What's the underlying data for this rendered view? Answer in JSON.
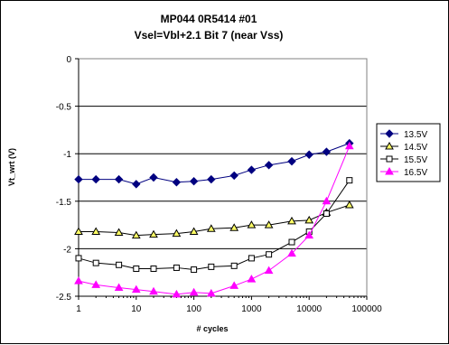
{
  "chart_data": {
    "type": "line",
    "title": "MP044 0R5414 #01",
    "subtitle": "Vsel=Vbl+2.1   Bit 7 (near Vss)",
    "xlabel": "# cycles",
    "ylabel": "Vt_wrt (V)",
    "x_scale": "log",
    "xlim": [
      1,
      100000
    ],
    "ylim": [
      -2.5,
      0
    ],
    "x_ticks": [
      1,
      10,
      100,
      1000,
      10000,
      100000
    ],
    "x_tick_labels": [
      "1",
      "10",
      "100",
      "1000",
      "10000",
      "100000"
    ],
    "y_ticks": [
      0,
      -0.5,
      -1,
      -1.5,
      -2,
      -2.5
    ],
    "y_tick_labels": [
      "0",
      "-0.5",
      "-1",
      "-1.5",
      "-2",
      "-2.5"
    ],
    "grid": "horizontal",
    "legend_position": "right",
    "x": [
      1,
      2,
      5,
      10,
      20,
      50,
      100,
      200,
      500,
      1000,
      2000,
      5000,
      10000,
      20000,
      50000
    ],
    "series": [
      {
        "name": "13.5V",
        "color": "#000080",
        "marker": "diamond-filled",
        "values": [
          -1.27,
          -1.27,
          -1.27,
          -1.32,
          -1.25,
          -1.3,
          -1.29,
          -1.27,
          -1.23,
          -1.17,
          -1.12,
          -1.08,
          -1.01,
          -0.98,
          -0.89
        ]
      },
      {
        "name": "14.5V",
        "color": "#000000",
        "fill": "#ffff66",
        "marker": "triangle-filled",
        "values": [
          -1.82,
          -1.82,
          -1.83,
          -1.86,
          -1.85,
          -1.84,
          -1.82,
          -1.79,
          -1.78,
          -1.75,
          -1.75,
          -1.71,
          -1.7,
          -1.62,
          -1.54
        ]
      },
      {
        "name": "15.5V",
        "color": "#000000",
        "fill": "#ffffff",
        "marker": "square-open",
        "values": [
          -2.1,
          -2.15,
          -2.17,
          -2.21,
          -2.21,
          -2.2,
          -2.22,
          -2.19,
          -2.18,
          -2.1,
          -2.06,
          -1.93,
          -1.82,
          -1.63,
          -1.28
        ]
      },
      {
        "name": "16.5V",
        "color": "#ff00ff",
        "marker": "triangle-filled",
        "values": [
          -2.34,
          -2.38,
          -2.41,
          -2.43,
          -2.45,
          -2.48,
          -2.46,
          -2.47,
          -2.39,
          -2.32,
          -2.23,
          -2.05,
          -1.86,
          -1.5,
          -0.92
        ]
      }
    ]
  }
}
